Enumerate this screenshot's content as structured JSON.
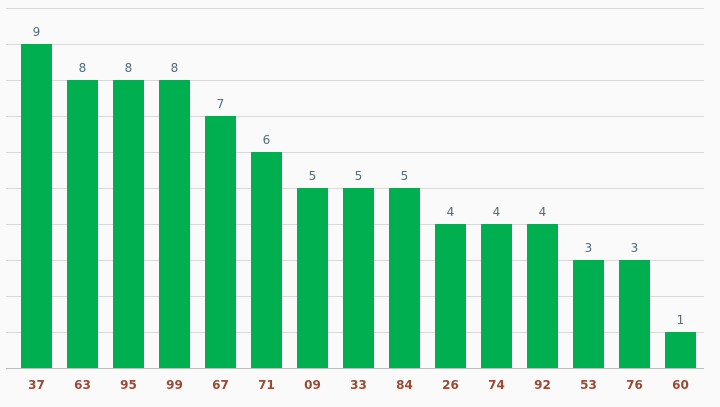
{
  "chart_data": {
    "type": "bar",
    "categories": [
      "37",
      "63",
      "95",
      "99",
      "67",
      "71",
      "09",
      "33",
      "84",
      "26",
      "74",
      "92",
      "53",
      "76",
      "60"
    ],
    "values": [
      9,
      8,
      8,
      8,
      7,
      6,
      5,
      5,
      5,
      4,
      4,
      4,
      3,
      3,
      1
    ],
    "ylim": [
      0,
      10
    ],
    "grid": true,
    "bar_color": "#00b050",
    "value_label_color": "#4f6d7a",
    "category_label_color": "#9b4a35"
  }
}
